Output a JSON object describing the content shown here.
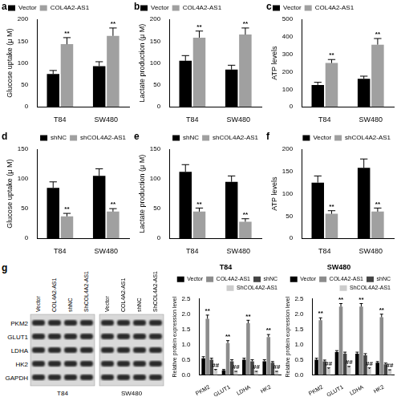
{
  "chart_data": [
    {
      "panel": "a",
      "type": "bar",
      "categories": [
        "T84",
        "SW480"
      ],
      "ylabel": "Glucose uptake (μ M)",
      "ylim": [
        0,
        200
      ],
      "yticks": [
        0,
        50,
        100,
        150,
        200
      ],
      "grid": false,
      "legend": "top left",
      "series": [
        {
          "name": "Vector",
          "color": "#000000",
          "values": [
            75,
            93
          ],
          "errors": [
            8,
            10
          ]
        },
        {
          "name": "COL4A2-AS1",
          "color": "#a0a0a0",
          "values": [
            143,
            162
          ],
          "errors": [
            15,
            18
          ],
          "marks": [
            "**",
            "**"
          ]
        }
      ]
    },
    {
      "panel": "b",
      "type": "bar",
      "categories": [
        "T84",
        "SW480"
      ],
      "ylabel": "Lactate production (μ M)",
      "ylim": [
        0,
        200
      ],
      "yticks": [
        0,
        50,
        100,
        150,
        200
      ],
      "grid": false,
      "legend": "top left",
      "series": [
        {
          "name": "Vector",
          "color": "#000000",
          "values": [
            105,
            85
          ],
          "errors": [
            12,
            10
          ]
        },
        {
          "name": "COL4A2-AS1",
          "color": "#a0a0a0",
          "values": [
            158,
            165
          ],
          "errors": [
            15,
            15
          ],
          "marks": [
            "**",
            "**"
          ]
        }
      ]
    },
    {
      "panel": "c",
      "type": "bar",
      "categories": [
        "T84",
        "SW480"
      ],
      "ylabel": "ATP levels",
      "ylim": [
        0,
        500
      ],
      "yticks": [
        0,
        100,
        200,
        300,
        400,
        500
      ],
      "grid": false,
      "legend": "top left",
      "series": [
        {
          "name": "Vector",
          "color": "#000000",
          "values": [
            125,
            160
          ],
          "errors": [
            15,
            15
          ]
        },
        {
          "name": "COL4A2-AS1",
          "color": "#a0a0a0",
          "values": [
            250,
            355
          ],
          "errors": [
            20,
            35
          ],
          "marks": [
            "**",
            "**"
          ]
        }
      ]
    },
    {
      "panel": "d",
      "type": "bar",
      "categories": [
        "T84",
        "SW480"
      ],
      "ylabel": "Glucose uptake (μ M)",
      "ylim": [
        0,
        150
      ],
      "yticks": [
        0,
        50,
        100,
        150
      ],
      "grid": false,
      "legend": "top right",
      "series": [
        {
          "name": "shNC",
          "color": "#000000",
          "values": [
            85,
            105
          ],
          "errors": [
            10,
            12
          ]
        },
        {
          "name": "shCOL4A2-AS1",
          "color": "#a0a0a0",
          "values": [
            37,
            45
          ],
          "errors": [
            5,
            5
          ],
          "marks": [
            "**",
            "**"
          ]
        }
      ]
    },
    {
      "panel": "e",
      "type": "bar",
      "categories": [
        "T84",
        "SW480"
      ],
      "ylabel": "Lactate production (μ M)",
      "ylim": [
        0,
        150
      ],
      "yticks": [
        0,
        50,
        100,
        150
      ],
      "grid": false,
      "legend": "top right",
      "series": [
        {
          "name": "shNC",
          "color": "#000000",
          "values": [
            112,
            95
          ],
          "errors": [
            12,
            10
          ]
        },
        {
          "name": "shCOL4A2-AS1",
          "color": "#a0a0a0",
          "values": [
            45,
            28
          ],
          "errors": [
            6,
            5
          ],
          "marks": [
            "**",
            "**"
          ]
        }
      ]
    },
    {
      "panel": "f",
      "type": "bar",
      "categories": [
        "T84",
        "SW480"
      ],
      "ylabel": "ATP levels",
      "ylim": [
        0,
        200
      ],
      "yticks": [
        0,
        50,
        100,
        150,
        200
      ],
      "grid": false,
      "legend": "top right",
      "series": [
        {
          "name": "Vector",
          "color": "#000000",
          "values": [
            125,
            158
          ],
          "errors": [
            15,
            20
          ]
        },
        {
          "name": "shCOL4A2-AS1",
          "color": "#a0a0a0",
          "values": [
            55,
            60
          ],
          "errors": [
            7,
            8
          ],
          "marks": [
            "**",
            "**"
          ]
        }
      ]
    },
    {
      "type": "bar",
      "title": "T84",
      "categories": [
        "PKM2",
        "GLUT1",
        "LDHA",
        "HK2"
      ],
      "ylabel": "Relative protein expression level",
      "ylim": [
        0,
        2.5
      ],
      "yticks": [
        {
          "value": 0,
          "label": "0.0"
        },
        {
          "value": 0.5,
          "label": "0.5"
        },
        {
          "value": 1,
          "label": "1.0"
        },
        {
          "value": 1.5,
          "label": "1.5"
        },
        {
          "value": 2,
          "label": "2.0"
        },
        {
          "value": 2.5,
          "label": "2.5"
        }
      ],
      "grid": false,
      "legend": "top right",
      "series": [
        {
          "name": "Vector",
          "color": "#000000",
          "values": [
            0.55,
            0.15,
            0.5,
            0.45
          ],
          "errors": [
            0.05,
            0.03,
            0.05,
            0.05
          ]
        },
        {
          "name": "COL4A2-AS1",
          "color": "#8c8c8c",
          "values": [
            1.85,
            1.05,
            1.7,
            1.25
          ],
          "errors": [
            0.12,
            0.08,
            0.1,
            0.08
          ],
          "marks": [
            "**",
            "**",
            "**",
            "**"
          ]
        },
        {
          "name": "shNC",
          "color": "#444444",
          "values": [
            0.5,
            0.45,
            0.45,
            0.4
          ],
          "errors": [
            0.05,
            0.05,
            0.05,
            0.04
          ]
        },
        {
          "name": "ShCOL4A2-AS1",
          "color": "#cccccc",
          "values": [
            0.15,
            0.1,
            0.1,
            0.1
          ],
          "errors": [
            0.03,
            0.02,
            0.02,
            0.02
          ],
          "marks": [
            "##",
            "##",
            "##",
            "##"
          ]
        }
      ]
    },
    {
      "type": "bar",
      "title": "SW480",
      "categories": [
        "PKM2",
        "GLUT1",
        "LDHA",
        "HK2"
      ],
      "ylabel": "Relative protein expression level",
      "ylim": [
        0,
        2.5
      ],
      "yticks": [
        {
          "value": 0,
          "label": "0.0"
        },
        {
          "value": 0.5,
          "label": "0.5"
        },
        {
          "value": 1,
          "label": "1.0"
        },
        {
          "value": 1.5,
          "label": "1.5"
        },
        {
          "value": 2,
          "label": "2.0"
        },
        {
          "value": 2.5,
          "label": "2.5"
        }
      ],
      "grid": false,
      "legend": "top right",
      "series": [
        {
          "name": "Vector",
          "color": "#000000",
          "values": [
            0.5,
            0.75,
            0.7,
            0.4
          ],
          "errors": [
            0.05,
            0.05,
            0.05,
            0.04
          ]
        },
        {
          "name": "COL4A2-AS1",
          "color": "#8c8c8c",
          "values": [
            1.8,
            2.25,
            2.25,
            1.9
          ],
          "errors": [
            0.08,
            0.1,
            0.1,
            0.1
          ],
          "marks": [
            "**",
            "**",
            "**",
            "**"
          ]
        },
        {
          "name": "shNC",
          "color": "#444444",
          "values": [
            0.45,
            0.7,
            0.65,
            0.35
          ],
          "errors": [
            0.04,
            0.05,
            0.05,
            0.04
          ]
        },
        {
          "name": "ShCOL4A2-AS1",
          "color": "#cccccc",
          "values": [
            0.2,
            0.25,
            0.2,
            0.15
          ],
          "errors": [
            0.03,
            0.03,
            0.03,
            0.02
          ],
          "marks": [
            "##",
            "##",
            "##",
            "##"
          ]
        }
      ]
    }
  ],
  "blot": {
    "panel": "g",
    "proteins": [
      "PKM2",
      "GLUT1",
      "LDHA",
      "HK2",
      "GAPDH"
    ],
    "blots": [
      {
        "cell_line": "T84",
        "lanes": [
          "Vector",
          "COL4A2-AS1",
          "shNC",
          "ShCOL4A2-AS1"
        ]
      },
      {
        "cell_line": "SW480",
        "lanes": [
          "Vector",
          "COL4A2-AS1",
          "shNC",
          "ShCOL4A2-AS1"
        ]
      }
    ]
  }
}
